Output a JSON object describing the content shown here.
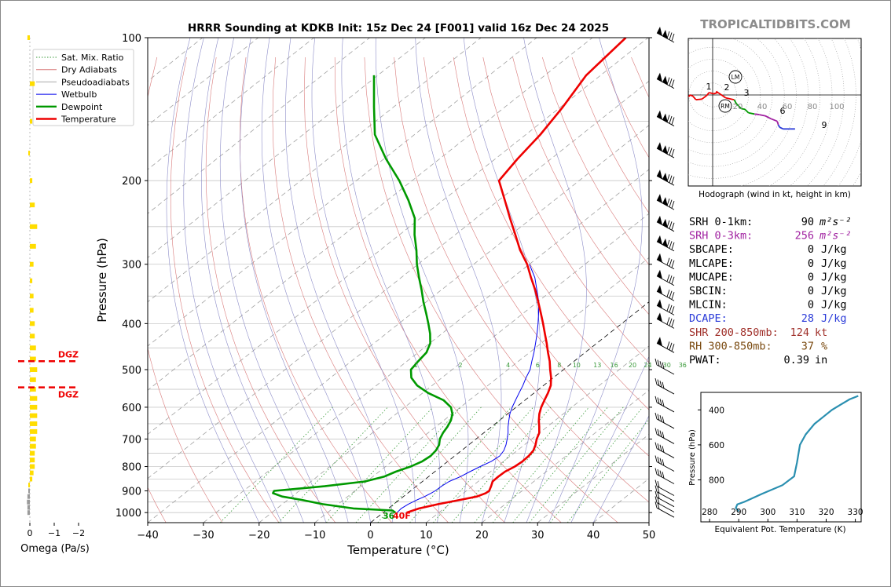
{
  "title": "HRRR Sounding at KDKB Init: 15z Dec 24 [F001] valid 16z Dec 24 2025",
  "brand": "TROPICALTIDBITS.COM",
  "colors": {
    "temperature": "#ee0000",
    "dewpoint": "#009900",
    "wetbulb": "#0000ee",
    "dry": "#d97a7a",
    "moist": "#8c8cc8",
    "mix": "#3a9a3a",
    "dgz": "#ee0000",
    "omega": "#ffdd00",
    "srh3": "#a020a0",
    "dcape": "#2a3ad8",
    "shr": "#a0302a",
    "rh": "#7a4a10"
  },
  "skewt": {
    "ylabel": "Pressure (hPa)",
    "xlabel": "Temperature (°C)",
    "pressure_ticks": [
      100,
      200,
      300,
      400,
      500,
      600,
      700,
      800,
      900,
      1000
    ],
    "temp_ticks": [
      -40,
      -30,
      -20,
      -10,
      0,
      10,
      20,
      30,
      40,
      50
    ],
    "mix_ratio_labels": [
      "1",
      "2",
      "4",
      "6",
      "8",
      "10",
      "13",
      "16",
      "20",
      "24",
      "30",
      "36"
    ],
    "surface_label_td": "36",
    "surface_label_t": "40F"
  },
  "legend": [
    "Sat. Mix. Ratio",
    "Dry Adiabats",
    "Pseudoadiabats",
    "Wetbulb",
    "Dewpoint",
    "Temperature"
  ],
  "omega": {
    "xlabel": "Omega (Pa/s)",
    "ticks": [
      "0",
      "−1",
      "−2"
    ],
    "dgz_label": "DGZ"
  },
  "hodograph": {
    "caption": "Hodograph (wind in kt, height in km)",
    "ring_labels": [
      "20",
      "40",
      "60",
      "80",
      "100"
    ],
    "lm": "LM",
    "rm": "RM",
    "height_labels": [
      "1",
      "2",
      "3",
      "6",
      "9"
    ]
  },
  "indices": [
    {
      "label": "SRH 0-1km:",
      "value": "90",
      "unit": "m²s⁻²"
    },
    {
      "label": "SRH 0-3km:",
      "value": "256",
      "unit": "m²s⁻²"
    },
    {
      "label": "SBCAPE:",
      "value": "0",
      "unit": "J/kg"
    },
    {
      "label": "MLCAPE:",
      "value": "0",
      "unit": "J/kg"
    },
    {
      "label": "MUCAPE:",
      "value": "0",
      "unit": "J/kg"
    },
    {
      "label": "SBCIN:",
      "value": "0",
      "unit": "J/kg"
    },
    {
      "label": "MLCIN:",
      "value": "0",
      "unit": "J/kg"
    },
    {
      "label": "DCAPE:",
      "value": "28",
      "unit": "J/kg"
    },
    {
      "label": "SHR 200-850mb:",
      "value": "124",
      "unit": "kt"
    },
    {
      "label": "RH 300-850mb:",
      "value": "37",
      "unit": "%"
    },
    {
      "label": "PWAT:",
      "value": "0.39",
      "unit": "in"
    }
  ],
  "theta_e_panel": {
    "ylabel": "Pressure (hPa)",
    "xlabel": "Equivalent Pot. Temperature (K)",
    "yticks": [
      "400",
      "600",
      "800"
    ],
    "xticks": [
      "280",
      "290",
      "300",
      "310",
      "320",
      "330"
    ]
  },
  "chart_data": [
    {
      "type": "line",
      "title": "HRRR Sounding at KDKB Init: 15z Dec 24 [F001] valid 16z Dec 24 2025",
      "xlabel": "Temperature (°C)",
      "ylabel": "Pressure (hPa)",
      "xlim": [
        -40,
        50
      ],
      "ylim": [
        1050,
        100
      ],
      "y_scale": "log",
      "x_skewed": true,
      "series": [
        {
          "name": "Temperature",
          "p": [
            1000,
            980,
            960,
            940,
            925,
            910,
            900,
            880,
            860,
            840,
            820,
            800,
            780,
            760,
            740,
            720,
            700,
            680,
            660,
            640,
            620,
            600,
            580,
            560,
            540,
            520,
            500,
            480,
            460,
            440,
            420,
            400,
            380,
            360,
            340,
            320,
            300,
            280,
            260,
            240,
            220,
            200,
            180,
            160,
            140,
            120,
            100
          ],
          "t": [
            4.2,
            5.5,
            8,
            11,
            13.2,
            14,
            14.1,
            13.4,
            12.6,
            12.5,
            12.6,
            13.2,
            13.4,
            13.3,
            12.9,
            12,
            10.9,
            10,
            8.6,
            7.1,
            5.7,
            4.5,
            3.5,
            2.5,
            1.3,
            -0.4,
            -2.4,
            -4.4,
            -6.7,
            -9,
            -11.5,
            -14.1,
            -16.9,
            -19.9,
            -23.1,
            -26.7,
            -30.4,
            -34.9,
            -39.2,
            -43.9,
            -48.9,
            -54.4,
            -56,
            -57.4,
            -59.6,
            -62.6,
            -64
          ]
        },
        {
          "name": "Dewpoint",
          "p": [
            1000,
            990,
            980,
            960,
            940,
            925,
            910,
            900,
            880,
            860,
            840,
            820,
            800,
            780,
            760,
            740,
            720,
            700,
            680,
            660,
            640,
            620,
            600,
            580,
            560,
            540,
            520,
            500,
            480,
            460,
            440,
            420,
            400,
            380,
            360,
            340,
            320,
            300,
            280,
            260,
            240,
            220,
            200,
            180,
            160,
            140,
            120,
            100
          ],
          "t": [
            2.2,
            1.2,
            -6.3,
            -12.8,
            -17.6,
            -21.8,
            -24.2,
            -24.5,
            -16.5,
            -10.3,
            -8,
            -7,
            -5.5,
            -4.6,
            -4.3,
            -4.6,
            -5.3,
            -6.5,
            -7.3,
            -7.9,
            -8.7,
            -9.9,
            -11.7,
            -14.6,
            -19,
            -22.7,
            -25.5,
            -27.4,
            -28,
            -28.5,
            -29.9,
            -32.1,
            -34.7,
            -37.5,
            -40.5,
            -43.5,
            -46.8,
            -50.2,
            -53.5,
            -57.3,
            -61,
            -66.2,
            -72.3,
            -79.6,
            -87.1,
            -93.5,
            -100.7
          ]
        },
        {
          "name": "Wetbulb",
          "p": [
            1000,
            980,
            960,
            940,
            925,
            910,
            900,
            880,
            860,
            840,
            820,
            800,
            780,
            760,
            740,
            720,
            700,
            680,
            660,
            640,
            620,
            600,
            580,
            560,
            540,
            520,
            500,
            480,
            460,
            440,
            420,
            400,
            380,
            360,
            340,
            320,
            300
          ],
          "t": [
            2.5,
            2.3,
            2.6,
            3.2,
            3.8,
            4.2,
            4.4,
            4.5,
            4.8,
            5.7,
            6.3,
            7,
            7.8,
            8.1,
            7.6,
            6.7,
            5.6,
            4.4,
            3,
            1.7,
            0.4,
            -0.7,
            -1.7,
            -2.7,
            -3.7,
            -4.9,
            -6,
            -7.6,
            -9.2,
            -11,
            -12.9,
            -15,
            -17.3,
            -19.8,
            -22.8,
            -26,
            -30
          ]
        }
      ]
    },
    {
      "type": "line",
      "title": "Hodograph (wind in kt, height in km)",
      "xlabel": "u (kt)",
      "ylabel": "v (kt)",
      "series": [
        {
          "name": "hodograph",
          "u": [
            -40,
            -38,
            -33,
            -28,
            -18,
            -10,
            -6,
            2,
            8,
            6,
            22,
            36,
            40,
            48,
            54,
            60,
            70,
            78,
            88,
            98,
            108,
            110,
            112,
            118,
            125,
            131,
            138
          ],
          "v": [
            -3,
            0,
            -2,
            -8,
            -7,
            -1,
            4,
            2,
            4,
            6,
            -5,
            -8,
            -15,
            -23,
            -24,
            -30,
            -32,
            -33,
            -35,
            -40,
            -44,
            -50,
            -54,
            -57,
            -57,
            -57,
            -57
          ]
        }
      ]
    },
    {
      "type": "line",
      "title": "",
      "xlabel": "Equivalent Pot. Temperature (K)",
      "ylabel": "Pressure (hPa)",
      "xlim": [
        277,
        332
      ],
      "ylim": [
        1040,
        300
      ],
      "series": [
        {
          "name": "theta-e",
          "x": [
            290,
            289,
            289.5,
            292,
            298,
            305,
            309,
            310,
            311,
            313,
            316,
            319,
            322,
            325,
            328,
            331
          ],
          "p": [
            980,
            960,
            940,
            925,
            880,
            830,
            780,
            700,
            600,
            540,
            480,
            440,
            400,
            370,
            340,
            320
          ]
        }
      ]
    },
    {
      "type": "bar",
      "title": "",
      "xlabel": "Omega (Pa/s)",
      "ylabel": "",
      "categories": [
        "1000",
        "975",
        "950",
        "925",
        "900",
        "875",
        "850",
        "825",
        "800",
        "775",
        "750",
        "725",
        "700",
        "675",
        "650",
        "625",
        "600",
        "575",
        "550",
        "525",
        "500",
        "475",
        "450",
        "425",
        "400",
        "375",
        "350",
        "325",
        "300",
        "275",
        "250",
        "225",
        "200",
        "175",
        "150",
        "125",
        "100"
      ],
      "values": [
        0.1,
        0.1,
        0.12,
        0.1,
        0.05,
        0.02,
        -0.1,
        -0.15,
        -0.2,
        -0.2,
        -0.2,
        -0.25,
        -0.25,
        -0.3,
        -0.3,
        -0.3,
        -0.3,
        -0.3,
        -0.25,
        -0.25,
        -0.3,
        -0.25,
        -0.25,
        -0.2,
        -0.2,
        -0.15,
        -0.15,
        -0.1,
        -0.15,
        -0.25,
        -0.3,
        -0.2,
        -0.1,
        0,
        -0.1,
        -0.2,
        0.1
      ],
      "dgz_pressure": [
        480,
        545
      ]
    }
  ]
}
